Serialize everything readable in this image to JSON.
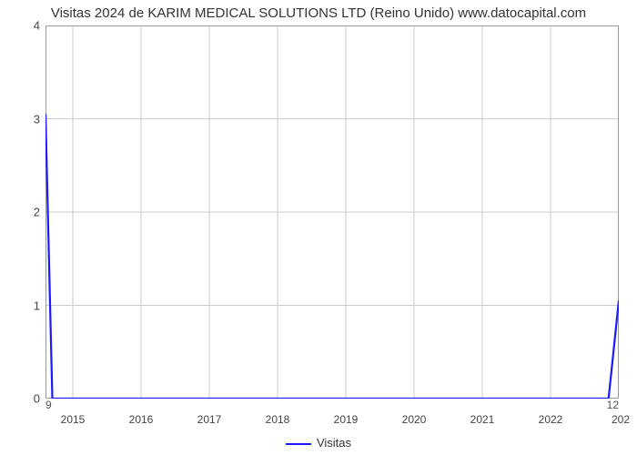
{
  "chart": {
    "type": "line",
    "title": "Visitas 2024 de KARIM MEDICAL SOLUTIONS LTD (Reino Unido) www.datocapital.com",
    "title_fontsize": 15,
    "title_color": "#333333",
    "background_color": "#ffffff",
    "plot_border_color": "#999999",
    "grid_color": "#cccccc",
    "x": {
      "ticks": [
        2015,
        2016,
        2017,
        2018,
        2019,
        2020,
        2021,
        2022
      ],
      "min": 2014.6,
      "max": 2023.0,
      "label_fontsize": 12,
      "label_right_partial": "202"
    },
    "y": {
      "ticks": [
        0,
        1,
        2,
        3,
        4
      ],
      "min": 0,
      "max": 4,
      "label_fontsize": 13
    },
    "secondary_labels": {
      "top_left": "9",
      "bottom_right": "12"
    },
    "series": [
      {
        "name": "Visitas",
        "color": "#1a1aff",
        "line_width": 2.2,
        "points": [
          [
            2014.6,
            3.05
          ],
          [
            2014.7,
            0
          ],
          [
            2022.85,
            0
          ],
          [
            2023.0,
            1.05
          ]
        ]
      }
    ],
    "legend": {
      "label": "Visitas",
      "position": "bottom-center",
      "fontsize": 13
    }
  }
}
